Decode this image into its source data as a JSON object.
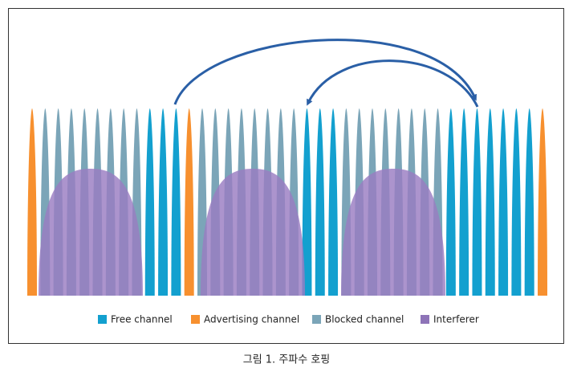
{
  "legend": {
    "items": [
      "Free channel",
      "Advertising channel",
      "Blocked channel",
      "Interferer"
    ]
  },
  "caption": "그림 1. 주파수 호핑"
}
